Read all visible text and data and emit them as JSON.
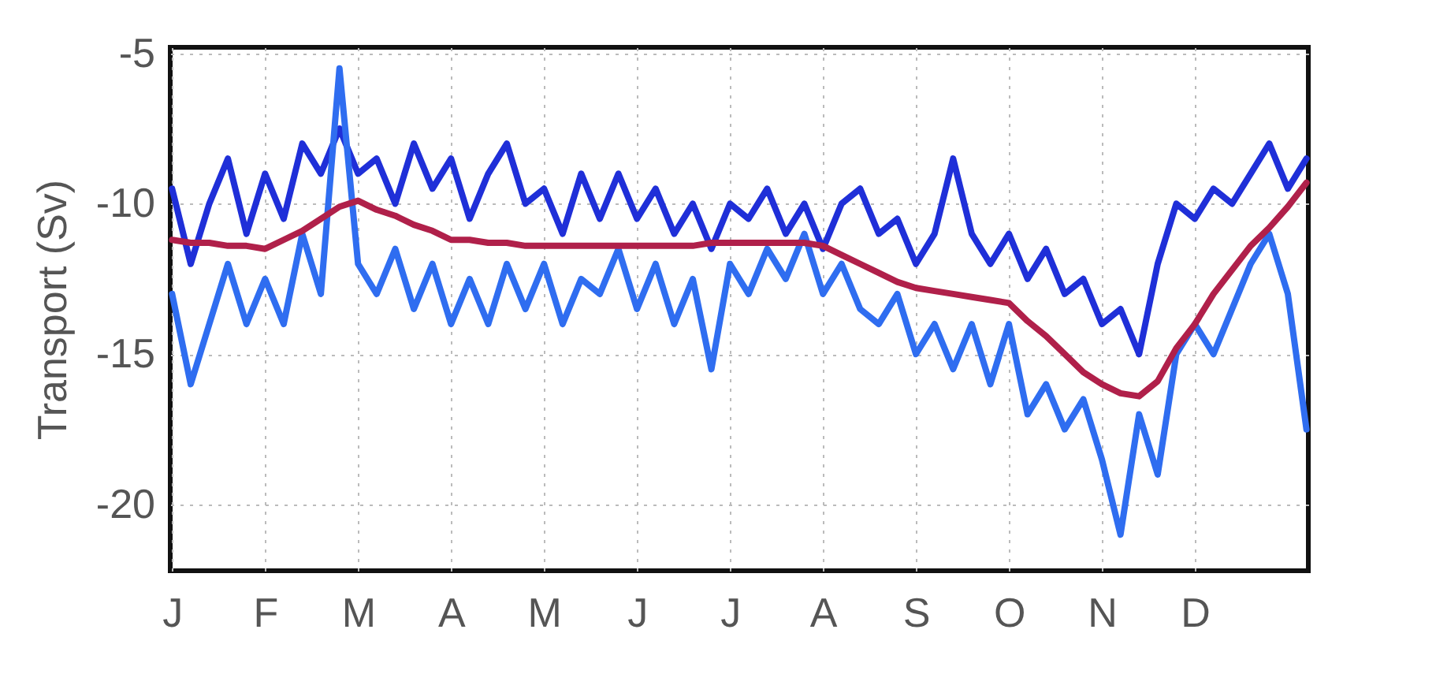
{
  "chart_data": {
    "type": "line",
    "ylabel": "Transport (Sv)",
    "categories": [
      "J",
      null,
      null,
      null,
      null,
      "F",
      null,
      null,
      null,
      null,
      "M",
      null,
      null,
      null,
      null,
      "A",
      null,
      null,
      null,
      null,
      "M",
      null,
      null,
      null,
      null,
      "J",
      null,
      null,
      null,
      null,
      "J",
      null,
      null,
      null,
      null,
      "A",
      null,
      null,
      null,
      null,
      "S",
      null,
      null,
      null,
      null,
      "O",
      null,
      null,
      null,
      null,
      "N",
      null,
      null,
      null,
      null,
      "D",
      null,
      null,
      null,
      null,
      null,
      null
    ],
    "ylim": [
      -22.2,
      -4.8
    ],
    "yticks": [
      -5,
      -10,
      -15,
      -20
    ],
    "grid": true,
    "series": [
      {
        "color": "#1f2fd8",
        "values": [
          -9.5,
          -12,
          -10,
          -8.5,
          -11,
          -9,
          -10.5,
          -8,
          -9,
          -7.5,
          -9,
          -8.5,
          -10,
          -8,
          -9.5,
          -8.5,
          -10.5,
          -9,
          -8,
          -10,
          -9.5,
          -11,
          -9,
          -10.5,
          -9,
          -10.5,
          -9.5,
          -11,
          -10,
          -11.5,
          -10,
          -10.5,
          -9.5,
          -11,
          -10,
          -11.5,
          -10,
          -9.5,
          -11,
          -10.5,
          -12,
          -11,
          -8.5,
          -11,
          -12,
          -11,
          -12.5,
          -11.5,
          -13,
          -12.5,
          -14,
          -13.5,
          -15,
          -12,
          -10,
          -10.5,
          -9.5,
          -10,
          -9,
          -8,
          -9.5,
          -8.5
        ]
      },
      {
        "color": "#2f6df0",
        "values": [
          -13,
          -16,
          -14,
          -12,
          -14,
          -12.5,
          -14,
          -11,
          -13,
          -5.5,
          -12,
          -13,
          -11.5,
          -13.5,
          -12,
          -14,
          -12.5,
          -14,
          -12,
          -13.5,
          -12,
          -14,
          -12.5,
          -13,
          -11.5,
          -13.5,
          -12,
          -14,
          -12.5,
          -15.5,
          -12,
          -13,
          -11.5,
          -12.5,
          -11,
          -13,
          -12,
          -13.5,
          -14,
          -13,
          -15,
          -14,
          -15.5,
          -14,
          -16,
          -14,
          -17,
          -16,
          -17.5,
          -16.5,
          -18.5,
          -21,
          -17,
          -19,
          -15,
          -14,
          -15,
          -13.5,
          -12,
          -11,
          -13,
          -17.5
        ]
      },
      {
        "color": "#b0204a",
        "values": [
          -11.2,
          -11.3,
          -11.3,
          -11.4,
          -11.4,
          -11.5,
          -11.2,
          -10.9,
          -10.5,
          -10.1,
          -9.9,
          -10.2,
          -10.4,
          -10.7,
          -10.9,
          -11.2,
          -11.2,
          -11.3,
          -11.3,
          -11.4,
          -11.4,
          -11.4,
          -11.4,
          -11.4,
          -11.4,
          -11.4,
          -11.4,
          -11.4,
          -11.4,
          -11.3,
          -11.3,
          -11.3,
          -11.3,
          -11.3,
          -11.3,
          -11.4,
          -11.7,
          -12.0,
          -12.3,
          -12.6,
          -12.8,
          -12.9,
          -13.0,
          -13.1,
          -13.2,
          -13.3,
          -13.9,
          -14.4,
          -15.0,
          -15.6,
          -16.0,
          -16.3,
          -16.4,
          -15.9,
          -14.8,
          -14.0,
          -13.0,
          -12.2,
          -11.4,
          -10.8,
          -10.1,
          -9.3
        ]
      }
    ]
  }
}
